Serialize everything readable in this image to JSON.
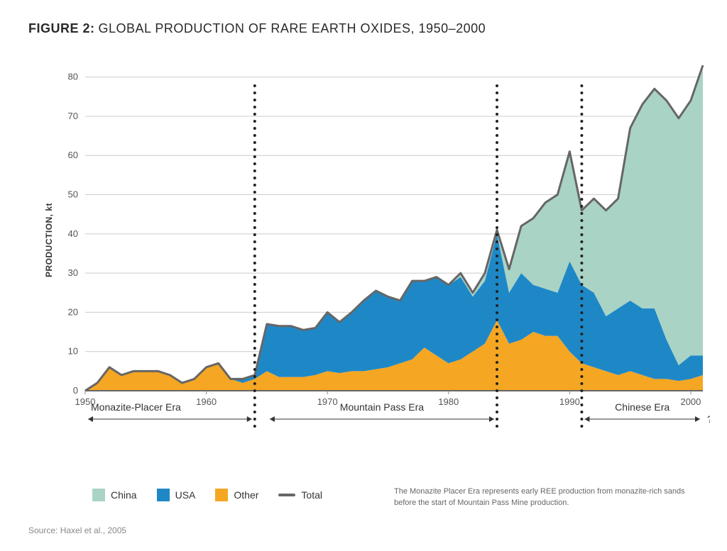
{
  "figure_label": "FIGURE 2:",
  "title": "GLOBAL PRODUCTION OF RARE EARTH OXIDES, 1950–2000",
  "y_axis_label": "PRODUCTION, kt",
  "chart": {
    "type": "stacked-area",
    "background_color": "#ffffff",
    "grid_color": "#cccccc",
    "total_line_color": "#666666",
    "total_line_width": 3,
    "x_tick_labels": [
      "1950",
      "1960",
      "1970",
      "1980",
      "1990",
      "2000"
    ],
    "x_values": [
      1950,
      1951,
      1952,
      1953,
      1954,
      1955,
      1956,
      1957,
      1958,
      1959,
      1960,
      1961,
      1962,
      1963,
      1964,
      1965,
      1966,
      1967,
      1968,
      1969,
      1970,
      1971,
      1972,
      1973,
      1974,
      1975,
      1976,
      1977,
      1978,
      1979,
      1980,
      1981,
      1982,
      1983,
      1984,
      1985,
      1986,
      1987,
      1988,
      1989,
      1990,
      1991,
      1992,
      1993,
      1994,
      1995,
      1996,
      1997,
      1998,
      1999,
      2000,
      2001
    ],
    "xlim": [
      1950,
      2001
    ],
    "ylim": [
      0,
      85
    ],
    "y_ticks": [
      0,
      10,
      20,
      30,
      40,
      50,
      60,
      70,
      80
    ],
    "series": [
      {
        "name": "Other",
        "color": "#f5a623",
        "values": [
          0,
          2,
          6,
          4,
          5,
          5,
          5,
          4,
          2,
          3,
          6,
          7,
          3,
          2,
          3,
          5,
          3.5,
          3.5,
          3.5,
          4,
          5,
          4.5,
          5,
          5,
          5.5,
          6,
          7,
          8,
          11,
          9,
          7,
          8,
          10,
          12,
          18,
          12,
          13,
          15,
          14,
          14,
          10,
          7,
          6,
          5,
          4,
          5,
          4,
          3,
          3,
          2.5,
          3,
          4
        ]
      },
      {
        "name": "USA",
        "color": "#1e88c7",
        "values": [
          0,
          0,
          0,
          0,
          0,
          0,
          0,
          0,
          0,
          0,
          0,
          0,
          0,
          1,
          1,
          12,
          13,
          13,
          12,
          12,
          15,
          13,
          15,
          18,
          20,
          18,
          16,
          20,
          17,
          20,
          20,
          21,
          14,
          16,
          22,
          13,
          17,
          12,
          12,
          11,
          23,
          20,
          19,
          14,
          17,
          18,
          17,
          18,
          10,
          4,
          6,
          5
        ]
      },
      {
        "name": "China",
        "color": "#a9d3c5",
        "values": [
          0,
          0,
          0,
          0,
          0,
          0,
          0,
          0,
          0,
          0,
          0,
          0,
          0,
          0,
          0,
          0,
          0,
          0,
          0,
          0,
          0,
          0,
          0,
          0,
          0,
          0,
          0,
          0,
          0,
          0,
          0,
          1,
          1,
          2,
          1,
          6,
          12,
          17,
          22,
          25,
          28,
          19,
          24,
          27,
          28,
          44,
          52,
          56,
          61,
          63,
          65,
          74
        ]
      }
    ],
    "eras": [
      {
        "label": "Monazite-Placer Era",
        "start": 1950,
        "end": 1964
      },
      {
        "label": "Mountain Pass Era",
        "start": 1965,
        "end": 1984
      },
      {
        "label": "Chinese Era",
        "start": 1991,
        "end": 2001
      }
    ],
    "era_dividers": [
      1964,
      1984,
      1991
    ],
    "question_mark": "?"
  },
  "legend": [
    {
      "label": "China",
      "color": "#a9d3c5",
      "type": "swatch"
    },
    {
      "label": "USA",
      "color": "#1e88c7",
      "type": "swatch"
    },
    {
      "label": "Other",
      "color": "#f5a623",
      "type": "swatch"
    },
    {
      "label": "Total",
      "color": "#666666",
      "type": "line"
    }
  ],
  "footnote": "The Monazite Placer Era represents early REE production from monazite-rich sands before the start of Mountain Pass Mine production.",
  "source": "Source: Haxel et al., 2005",
  "typography": {
    "title_fontsize": 18,
    "axis_label_fontsize": 12,
    "tick_fontsize": 13,
    "legend_fontsize": 14,
    "era_fontsize": 14,
    "footnote_fontsize": 11,
    "source_fontsize": 12
  }
}
